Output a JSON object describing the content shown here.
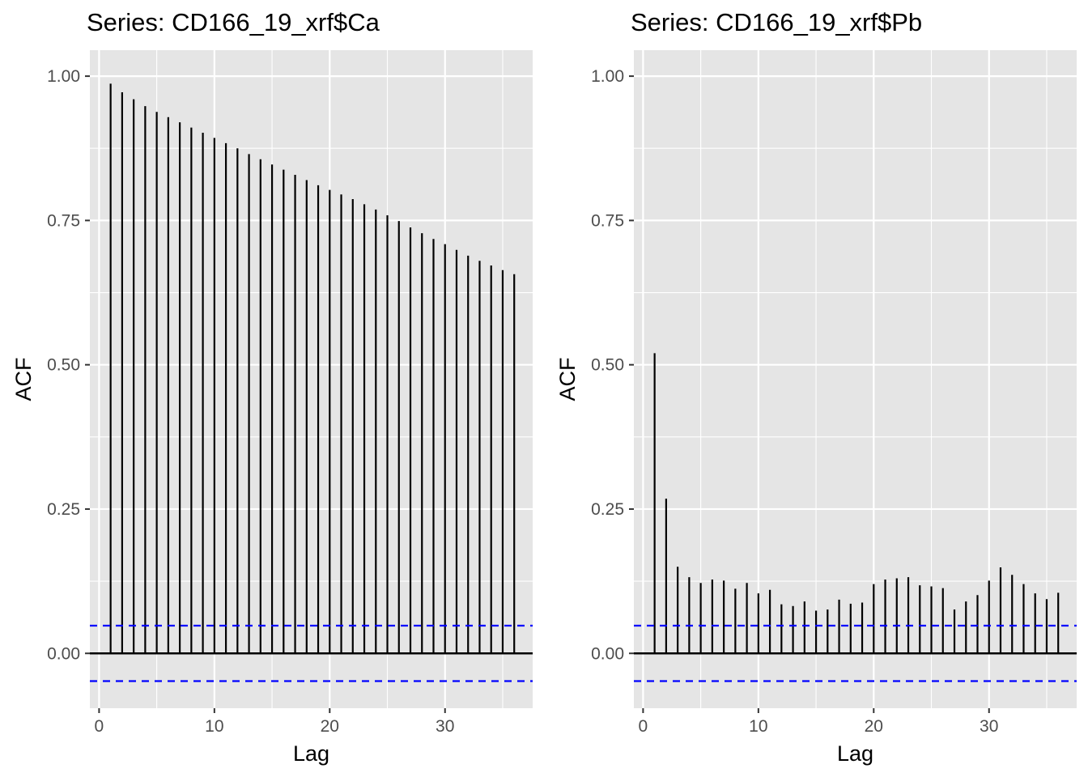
{
  "chart_data": [
    {
      "type": "bar",
      "title": "Series: CD166_19_xrf$Ca",
      "xlabel": "Lag",
      "ylabel": "ACF",
      "xlim": [
        -0.8,
        37.6
      ],
      "ylim": [
        -0.095,
        1.045
      ],
      "xticks": [
        "0",
        "10",
        "20",
        "30"
      ],
      "yticks": [
        "0.00",
        "0.25",
        "0.50",
        "0.75",
        "1.00"
      ],
      "confidence_bound": 0.048,
      "grid": true,
      "colors": {
        "panel": "#e5e5e5",
        "grid": "#ffffff",
        "bars": "#000000",
        "ci": "#0000ff"
      },
      "lags": [
        1,
        2,
        3,
        4,
        5,
        6,
        7,
        8,
        9,
        10,
        11,
        12,
        13,
        14,
        15,
        16,
        17,
        18,
        19,
        20,
        21,
        22,
        23,
        24,
        25,
        26,
        27,
        28,
        29,
        30,
        31,
        32,
        33,
        34,
        35,
        36
      ],
      "values": [
        0.987,
        0.972,
        0.96,
        0.948,
        0.938,
        0.929,
        0.92,
        0.911,
        0.902,
        0.893,
        0.884,
        0.875,
        0.865,
        0.856,
        0.847,
        0.838,
        0.829,
        0.82,
        0.811,
        0.803,
        0.795,
        0.787,
        0.778,
        0.769,
        0.759,
        0.749,
        0.738,
        0.728,
        0.718,
        0.709,
        0.699,
        0.689,
        0.68,
        0.672,
        0.664,
        0.657
      ]
    },
    {
      "type": "bar",
      "title": "Series: CD166_19_xrf$Pb",
      "xlabel": "Lag",
      "ylabel": "ACF",
      "xlim": [
        -0.8,
        37.6
      ],
      "ylim": [
        -0.095,
        1.045
      ],
      "xticks": [
        "0",
        "10",
        "20",
        "30"
      ],
      "yticks": [
        "0.00",
        "0.25",
        "0.50",
        "0.75",
        "1.00"
      ],
      "confidence_bound": 0.048,
      "grid": true,
      "colors": {
        "panel": "#e5e5e5",
        "grid": "#ffffff",
        "bars": "#000000",
        "ci": "#0000ff"
      },
      "lags": [
        1,
        2,
        3,
        4,
        5,
        6,
        7,
        8,
        9,
        10,
        11,
        12,
        13,
        14,
        15,
        16,
        17,
        18,
        19,
        20,
        21,
        22,
        23,
        24,
        25,
        26,
        27,
        28,
        29,
        30,
        31,
        32,
        33,
        34,
        35,
        36
      ],
      "values": [
        0.52,
        0.268,
        0.15,
        0.132,
        0.122,
        0.128,
        0.126,
        0.112,
        0.122,
        0.104,
        0.11,
        0.085,
        0.082,
        0.09,
        0.074,
        0.076,
        0.093,
        0.086,
        0.088,
        0.12,
        0.128,
        0.13,
        0.132,
        0.118,
        0.116,
        0.113,
        0.076,
        0.09,
        0.101,
        0.126,
        0.149,
        0.136,
        0.12,
        0.104,
        0.094,
        0.105
      ]
    }
  ]
}
